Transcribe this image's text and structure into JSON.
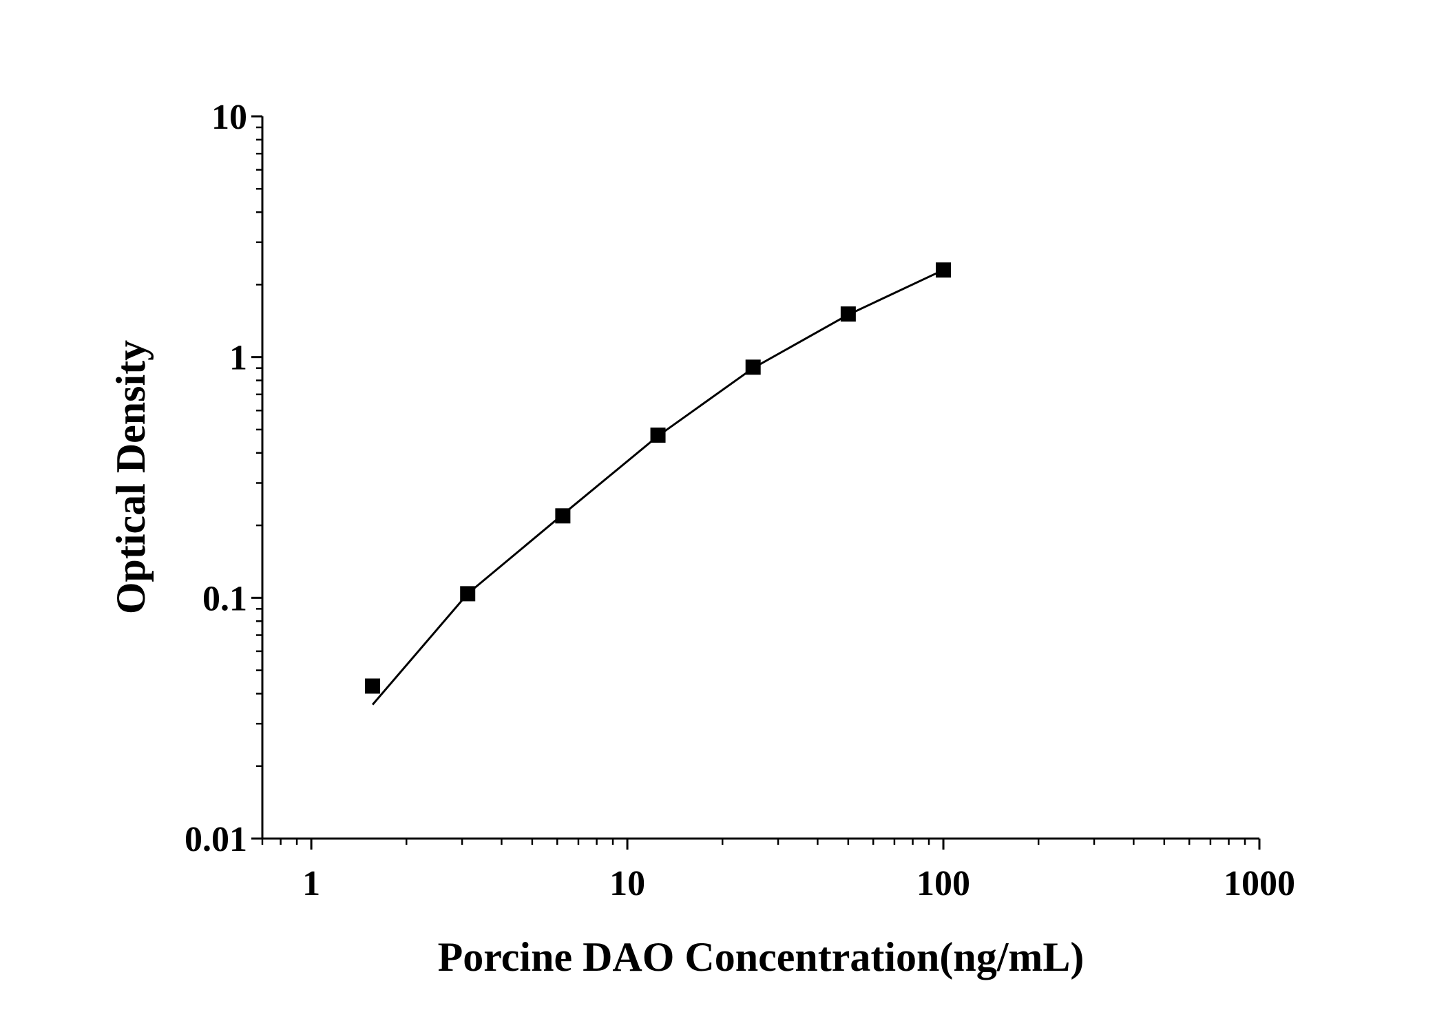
{
  "chart_data": {
    "type": "scatter",
    "xlabel": "Porcine DAO Concentration(ng/mL)",
    "ylabel": "Optical Density",
    "xscale": "log",
    "yscale": "log",
    "xlim": [
      0.7,
      1000
    ],
    "ylim": [
      0.01,
      10
    ],
    "xticks": [
      1,
      10,
      100,
      1000
    ],
    "xtick_labels": [
      "1",
      "10",
      "100",
      "1000"
    ],
    "yticks": [
      0.01,
      0.1,
      1,
      10
    ],
    "ytick_labels": [
      "0.01",
      "0.1",
      "1",
      "10"
    ],
    "grid": false,
    "marker": "square",
    "color": "#000000",
    "x": [
      1.5625,
      3.125,
      6.25,
      12.5,
      25,
      50,
      100
    ],
    "y": [
      0.043,
      0.104,
      0.219,
      0.474,
      0.908,
      1.51,
      2.3
    ],
    "fit_curve": {
      "x": [
        1.5625,
        3.125,
        6.25,
        12.5,
        25,
        50,
        100
      ],
      "y": [
        0.036,
        0.104,
        0.222,
        0.47,
        0.9,
        1.5,
        2.3
      ]
    }
  }
}
